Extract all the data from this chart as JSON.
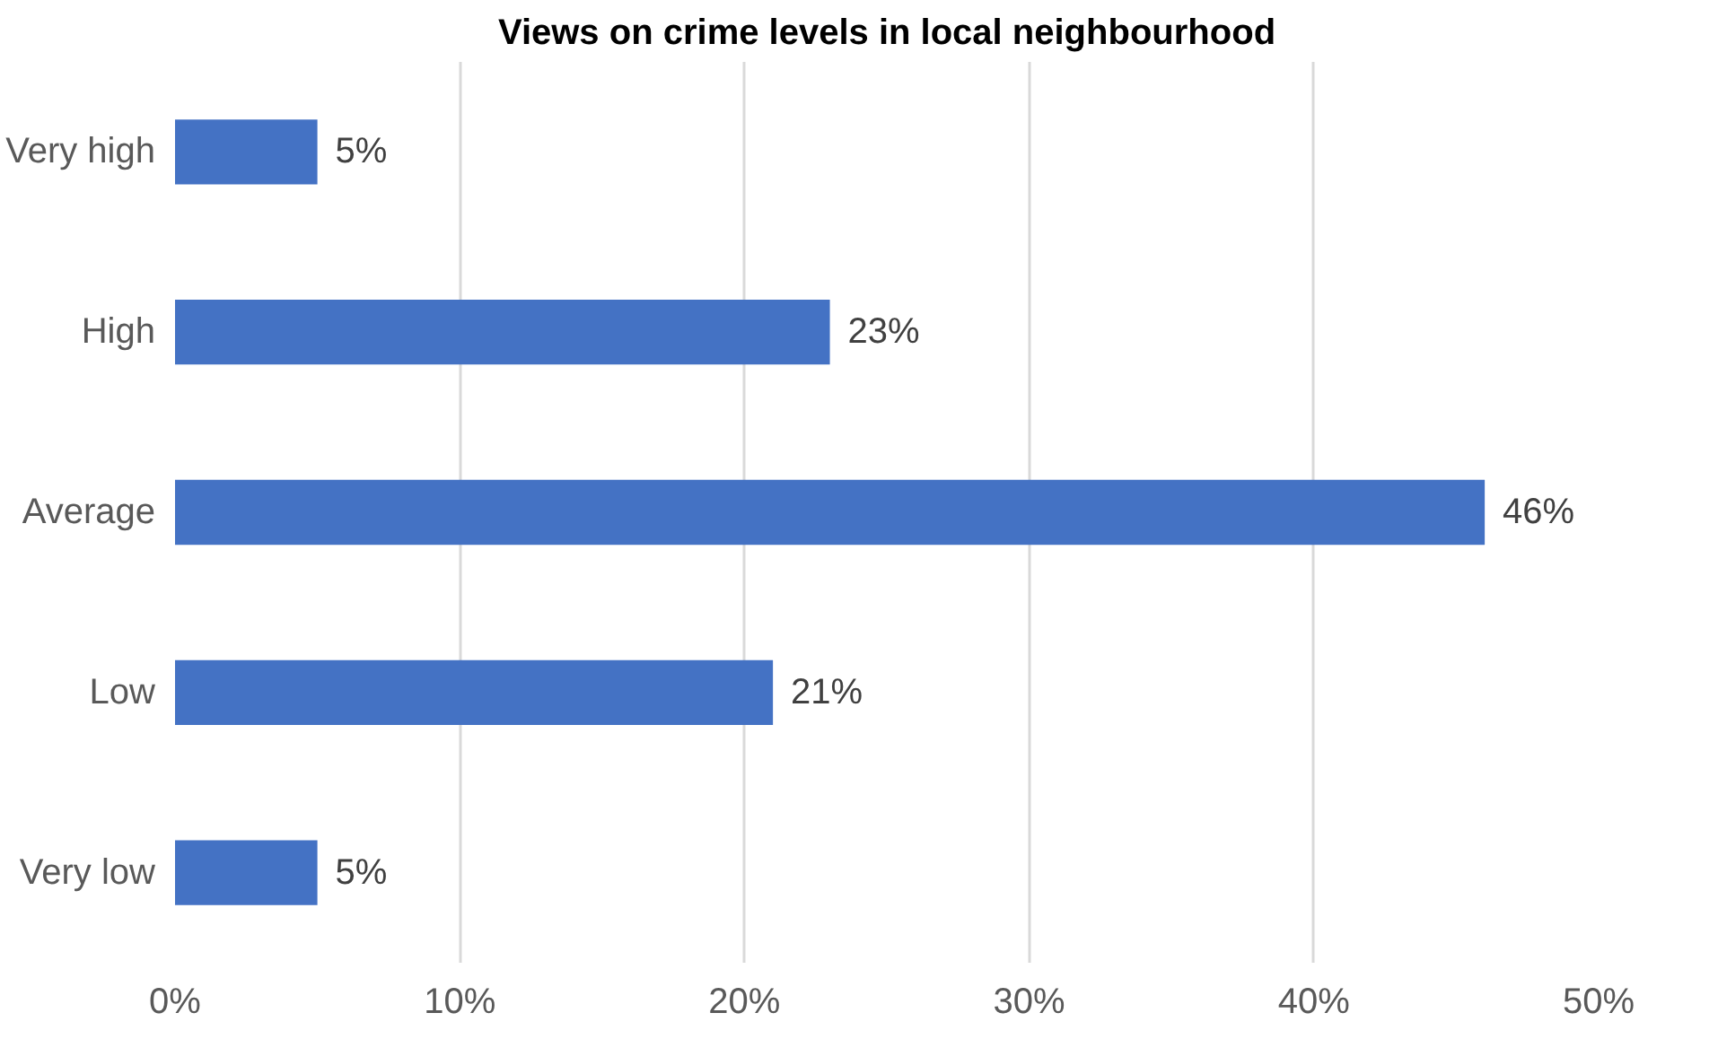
{
  "chart_data": {
    "type": "bar",
    "orientation": "horizontal",
    "title": "Views on crime levels in local neighbourhood",
    "categories": [
      "Very high",
      "High",
      "Average",
      "Low",
      "Very low"
    ],
    "values": [
      5,
      23,
      46,
      21,
      5
    ],
    "value_labels": [
      "5%",
      "23%",
      "46%",
      "21%",
      "5%"
    ],
    "color": "#4472c4",
    "xlim": [
      0,
      50
    ],
    "xticks": [
      {
        "value": 0,
        "label": "0%"
      },
      {
        "value": 10,
        "label": "10%"
      },
      {
        "value": 20,
        "label": "20%"
      },
      {
        "value": 30,
        "label": "30%"
      },
      {
        "value": 40,
        "label": "40%"
      },
      {
        "value": 50,
        "label": "50%"
      }
    ],
    "grid": "x"
  }
}
